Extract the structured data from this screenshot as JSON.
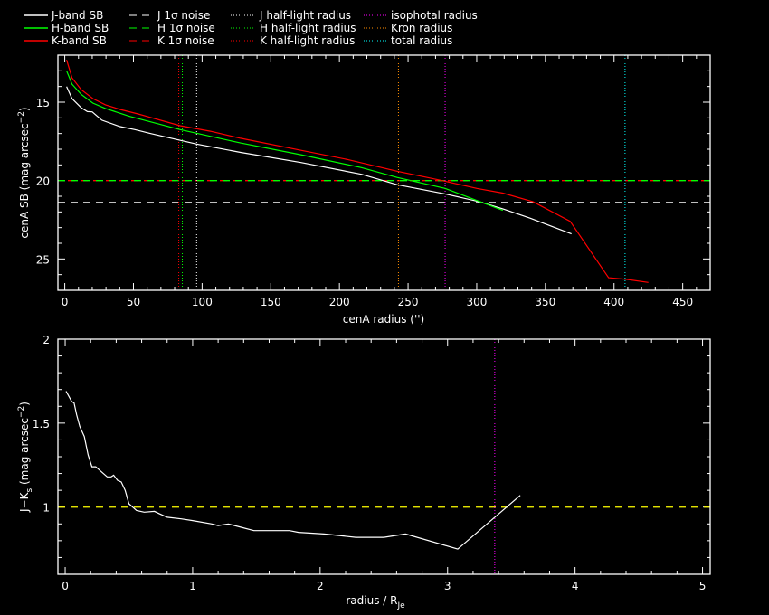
{
  "legend": {
    "items": [
      {
        "label": "J-band SB",
        "color": "#ffffff",
        "style": "solid"
      },
      {
        "label": "H-band SB",
        "color": "#00ff00",
        "style": "solid"
      },
      {
        "label": "K-band SB",
        "color": "#ff0000",
        "style": "solid"
      },
      {
        "label": "J 1σ noise",
        "color": "#ffffff",
        "style": "dashed"
      },
      {
        "label": "H 1σ noise",
        "color": "#00ff00",
        "style": "dashed"
      },
      {
        "label": "K 1σ noise",
        "color": "#ff0000",
        "style": "dashed"
      },
      {
        "label": "J half-light radius",
        "color": "#ffffff",
        "style": "dotted"
      },
      {
        "label": "H half-light radius",
        "color": "#00ff00",
        "style": "dotted"
      },
      {
        "label": "K half-light radius",
        "color": "#ff0000",
        "style": "dotted"
      },
      {
        "label": "isophotal radius",
        "color": "#ff00ff",
        "style": "dotted"
      },
      {
        "label": "Kron radius",
        "color": "#ff8c00",
        "style": "dotted"
      },
      {
        "label": "total radius",
        "color": "#00ffff",
        "style": "dotted"
      }
    ]
  },
  "chart_data": [
    {
      "type": "line",
      "title": "",
      "xlabel": "cenA radius ('')",
      "ylabel": {
        "main": "cenA SB (mag arcsec",
        "sup": "−2",
        "close": ")"
      },
      "xlim": [
        -5,
        470
      ],
      "ylim": [
        27,
        12
      ],
      "xticks": [
        0,
        50,
        100,
        150,
        200,
        250,
        300,
        350,
        400,
        450
      ],
      "yticks": [
        15,
        20,
        25
      ],
      "series": [
        {
          "name": "J-band SB",
          "color": "#ffffff",
          "x": [
            1.3,
            5.3,
            11.9,
            16.5,
            20,
            27,
            40,
            51,
            62.6,
            96,
            128,
            172,
            216,
            242,
            277,
            302,
            319,
            339,
            369
          ],
          "y": [
            14.0,
            14.77,
            15.35,
            15.6,
            15.62,
            16.15,
            16.55,
            16.75,
            17.0,
            17.67,
            18.2,
            18.85,
            19.6,
            20.26,
            20.85,
            21.35,
            21.8,
            22.4,
            23.4
          ]
        },
        {
          "name": "H-band SB",
          "color": "#00ff00",
          "x": [
            1.3,
            5.3,
            11.9,
            20.4,
            29.6,
            47,
            84,
            128,
            172,
            216,
            242,
            277,
            304,
            319
          ],
          "y": [
            13.0,
            13.85,
            14.5,
            15.06,
            15.4,
            15.9,
            16.75,
            17.6,
            18.35,
            19.17,
            19.8,
            20.5,
            21.4,
            21.9
          ]
        },
        {
          "name": "K-band SB",
          "color": "#ff0000",
          "x": [
            1.3,
            5.3,
            11.9,
            20.4,
            29.6,
            40.2,
            53.4,
            84,
            106,
            128,
            172,
            205,
            242,
            273,
            300,
            319,
            341,
            368,
            396,
            409,
            425
          ],
          "y": [
            12.3,
            13.45,
            14.2,
            14.77,
            15.17,
            15.46,
            15.75,
            16.5,
            16.85,
            17.3,
            18.07,
            18.64,
            19.4,
            19.97,
            20.5,
            20.8,
            21.35,
            22.6,
            26.2,
            26.3,
            26.5
          ]
        }
      ],
      "hlines": [
        {
          "name": "J 1σ noise",
          "value": 21.4,
          "color": "#ffffff"
        },
        {
          "name": "K 1σ noise",
          "value": 20.0,
          "color": "#ff0000"
        },
        {
          "name": "H 1σ noise",
          "value": 20.0,
          "color": "#00ff00"
        }
      ],
      "vlines": [
        {
          "name": "K half-light radius",
          "value": 83,
          "color": "#ff0000"
        },
        {
          "name": "H half-light radius",
          "value": 85.6,
          "color": "#00ff00"
        },
        {
          "name": "J half-light radius",
          "value": 96,
          "color": "#ffffff"
        },
        {
          "name": "Kron radius",
          "value": 243,
          "color": "#ff8c00"
        },
        {
          "name": "isophotal radius",
          "value": 277,
          "color": "#ff00ff"
        },
        {
          "name": "total radius",
          "value": 408,
          "color": "#00ffff"
        }
      ]
    },
    {
      "type": "line",
      "title": "",
      "xlabel": {
        "main": "radius / R",
        "sub": "Je"
      },
      "ylabel": {
        "main": "J−K",
        "sub": "s",
        "mid": " (mag arcsec",
        "sup": "−2",
        "close": ")"
      },
      "xlim": [
        -0.057,
        5.06
      ],
      "ylim": [
        0.6,
        2
      ],
      "xticks": [
        0,
        1,
        2,
        3,
        4,
        5
      ],
      "yticks": [
        1,
        1.5,
        2
      ],
      "series": [
        {
          "name": "J-Ks",
          "color": "#ffffff",
          "x": [
            0.007,
            0.05,
            0.07,
            0.09,
            0.115,
            0.15,
            0.18,
            0.21,
            0.24,
            0.27,
            0.33,
            0.36,
            0.38,
            0.41,
            0.44,
            0.47,
            0.5,
            0.53,
            0.56,
            0.62,
            0.7,
            0.74,
            0.8,
            0.91,
            1.0,
            1.15,
            1.2,
            1.28,
            1.38,
            1.48,
            1.76,
            1.83,
            2.03,
            2.28,
            2.5,
            2.67,
            3.08,
            3.57
          ],
          "y": [
            1.69,
            1.63,
            1.62,
            1.55,
            1.48,
            1.42,
            1.31,
            1.24,
            1.24,
            1.22,
            1.18,
            1.18,
            1.19,
            1.16,
            1.15,
            1.1,
            1.02,
            1.0,
            0.98,
            0.97,
            0.975,
            0.96,
            0.94,
            0.93,
            0.92,
            0.9,
            0.89,
            0.9,
            0.88,
            0.86,
            0.86,
            0.85,
            0.84,
            0.82,
            0.82,
            0.84,
            0.75,
            1.07
          ]
        }
      ],
      "hlines": [
        {
          "name": "reference J-Ks",
          "value": 1.0,
          "color": "#ffff00"
        }
      ],
      "vlines": [
        {
          "name": "isophotal radius",
          "value": 3.37,
          "color": "#ff00ff"
        }
      ]
    }
  ]
}
